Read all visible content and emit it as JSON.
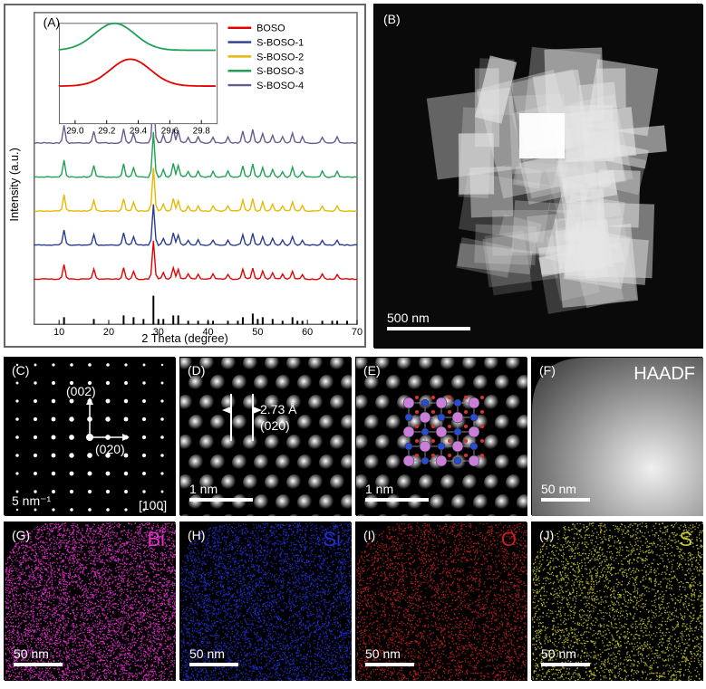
{
  "panelA": {
    "label": "(A)",
    "type": "line-stack",
    "xlabel": "2 Theta (degree)",
    "ylabel": "Intensity (a.u.)",
    "xlim": [
      5,
      70
    ],
    "xticks": [
      10,
      20,
      30,
      40,
      50,
      60,
      70
    ],
    "series": [
      {
        "name": "BOSO",
        "color": "#e60000"
      },
      {
        "name": "S-BOSO-1",
        "color": "#2a3b8f"
      },
      {
        "name": "S-BOSO-2",
        "color": "#e6b800"
      },
      {
        "name": "S-BOSO-3",
        "color": "#1fa055"
      },
      {
        "name": "S-BOSO-4",
        "color": "#6a5a8c"
      }
    ],
    "peaks_x": [
      11,
      17,
      23,
      25,
      29,
      31,
      33,
      34,
      36,
      38,
      41,
      44,
      47,
      49,
      51,
      53,
      55,
      57,
      59,
      63,
      66
    ],
    "peaks_h": [
      18,
      12,
      14,
      10,
      48,
      8,
      14,
      12,
      6,
      6,
      6,
      6,
      12,
      14,
      10,
      8,
      6,
      10,
      6,
      6,
      6
    ],
    "inset": {
      "xlim": [
        28.9,
        29.9
      ],
      "xticks": [
        29.0,
        29.2,
        29.4,
        29.6,
        29.8
      ],
      "curves": [
        {
          "color": "#1fa055",
          "center": 29.25,
          "yoff": 0
        },
        {
          "color": "#e60000",
          "center": 29.35,
          "yoff": 1
        }
      ]
    },
    "ref_bars_x": [
      11,
      17,
      23,
      25,
      27,
      29,
      30,
      31,
      33,
      34,
      36,
      38,
      40,
      41,
      44,
      46,
      47,
      49,
      50,
      51,
      53,
      55,
      57,
      58,
      59,
      63,
      65,
      66,
      68
    ],
    "ref_bars_h": [
      8,
      6,
      10,
      8,
      6,
      32,
      6,
      6,
      10,
      10,
      4,
      4,
      4,
      4,
      4,
      4,
      8,
      12,
      6,
      8,
      6,
      4,
      8,
      4,
      4,
      4,
      4,
      4,
      4
    ]
  },
  "panelB": {
    "label": "(B)",
    "scalebar": "500 nm"
  },
  "panelC": {
    "label": "(C)",
    "text1": "(002)",
    "text2": "(020)",
    "zone": "[100]",
    "scalebar": "5 nm⁻¹"
  },
  "panelD": {
    "label": "(D)",
    "spacing": "2.73 Å",
    "plane": "(020)",
    "scalebar": "1 nm"
  },
  "panelE": {
    "label": "(E)",
    "scalebar": "1 nm",
    "atom_colors": {
      "Bi": "#c97fd8",
      "Si": "#2b4bd6",
      "O": "#d93030"
    }
  },
  "panelF": {
    "label": "(F)",
    "title": "HAADF",
    "scalebar": "50 nm",
    "gradient": [
      "#f5f5f5",
      "#0a0a0a"
    ]
  },
  "panelG": {
    "label": "(G)",
    "element": "Bi",
    "color": "#e030c8",
    "scalebar": "50 nm"
  },
  "panelH": {
    "label": "(H)",
    "element": "Si",
    "color": "#2030d0",
    "scalebar": "50 nm"
  },
  "panelI": {
    "label": "(I)",
    "element": "O",
    "color": "#c02020",
    "scalebar": "50 nm"
  },
  "panelJ": {
    "label": "(J)",
    "element": "S",
    "color": "#c8c830",
    "scalebar": "50 nm"
  }
}
